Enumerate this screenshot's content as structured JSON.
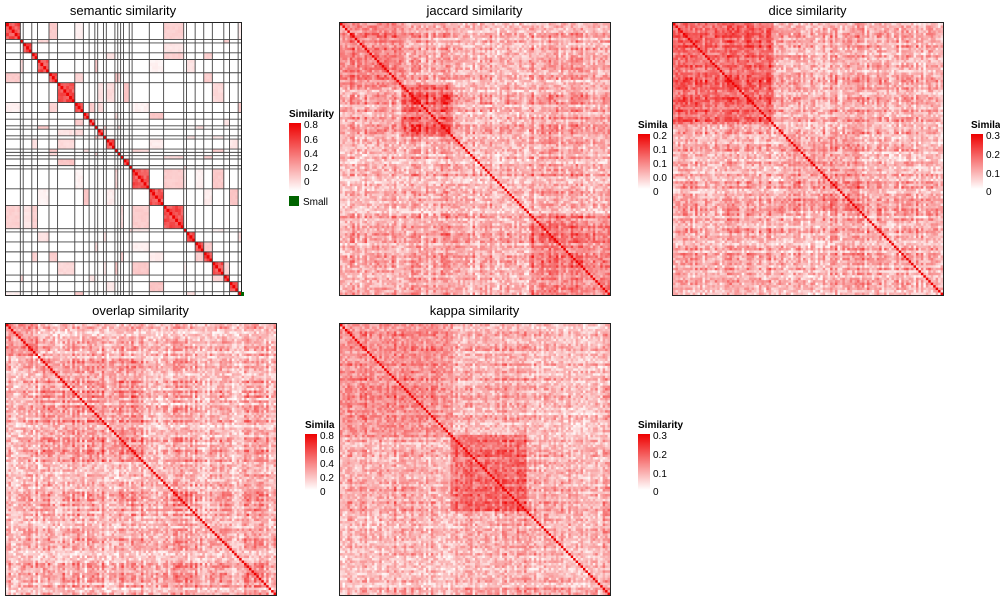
{
  "colors": {
    "low": "#ffffff",
    "high": "#ee0000",
    "border": "#222222",
    "small_marker": "#006400"
  },
  "chart_data": [
    {
      "type": "heatmap",
      "title": "semantic similarity",
      "legend": {
        "title": "Similarity",
        "ticks": [
          "0.8",
          "0.6",
          "0.4",
          "0.2",
          "0"
        ],
        "max": 0.85,
        "extra_label": "Small"
      },
      "structure": "blocks",
      "block_sizes": [
        5,
        1,
        3,
        2,
        4,
        3,
        6,
        3,
        2,
        2,
        1,
        2,
        1,
        3,
        1,
        1,
        1,
        2,
        1,
        6,
        5,
        7,
        1,
        3,
        3,
        3,
        4,
        2,
        3,
        1
      ],
      "value_range": [
        0,
        0.8
      ]
    },
    {
      "type": "heatmap",
      "title": "jaccard similarity",
      "legend": {
        "title": "Similarity",
        "ticks": [
          "0.2",
          "0.1",
          "0.1",
          "0.0",
          "0"
        ],
        "max": 0.25
      },
      "value_range": [
        0,
        0.25
      ]
    },
    {
      "type": "heatmap",
      "title": "dice similarity",
      "legend": {
        "title": "Similarity",
        "ticks": [
          "0.3",
          "0.2",
          "0.1",
          "0"
        ],
        "max": 0.35
      },
      "value_range": [
        0,
        0.35
      ]
    },
    {
      "type": "heatmap",
      "title": "overlap similarity",
      "legend": {
        "title": "Similarity",
        "ticks": [
          "0.8",
          "0.6",
          "0.4",
          "0.2",
          "0"
        ],
        "max": 0.85
      },
      "value_range": [
        0,
        0.85
      ]
    },
    {
      "type": "heatmap",
      "title": "kappa similarity",
      "legend": {
        "title": "Similarity",
        "ticks": [
          "0.3",
          "0.2",
          "0.1",
          "0"
        ],
        "max": 0.32
      },
      "value_range": [
        0,
        0.32
      ]
    }
  ]
}
